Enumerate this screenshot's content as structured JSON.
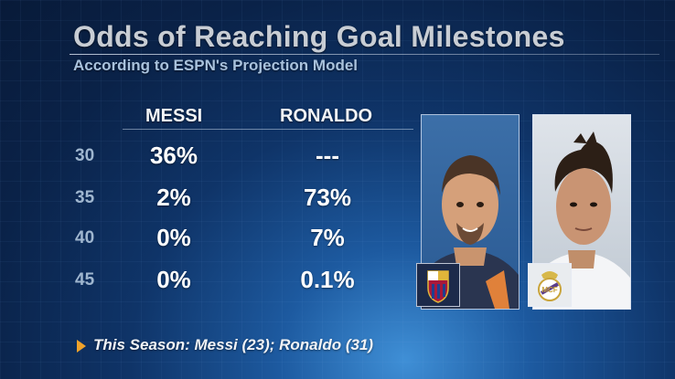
{
  "header": {
    "title": "Odds of Reaching Goal Milestones",
    "subtitle": "According to ESPN's Projection Model"
  },
  "table": {
    "columns": [
      "MESSI",
      "RONALDO"
    ],
    "rows": [
      {
        "milestone": "30",
        "messi": "36%",
        "ronaldo": "---"
      },
      {
        "milestone": "35",
        "messi": "2%",
        "ronaldo": "73%"
      },
      {
        "milestone": "40",
        "messi": "0%",
        "ronaldo": "7%"
      },
      {
        "milestone": "45",
        "messi": "0%",
        "ronaldo": "0.1%"
      }
    ]
  },
  "footer": {
    "note": "This Season: Messi (23); Ronaldo (31)"
  },
  "images": {
    "messi_photo": "messi-portrait",
    "ronaldo_photo": "ronaldo-portrait",
    "messi_badge": "fc-barcelona-crest-icon",
    "ronaldo_badge": "real-madrid-crest-icon"
  },
  "colors": {
    "accent_arrow": "#f0a22a",
    "title": "#c8cdd4",
    "subtitle": "#a9c2dd"
  }
}
